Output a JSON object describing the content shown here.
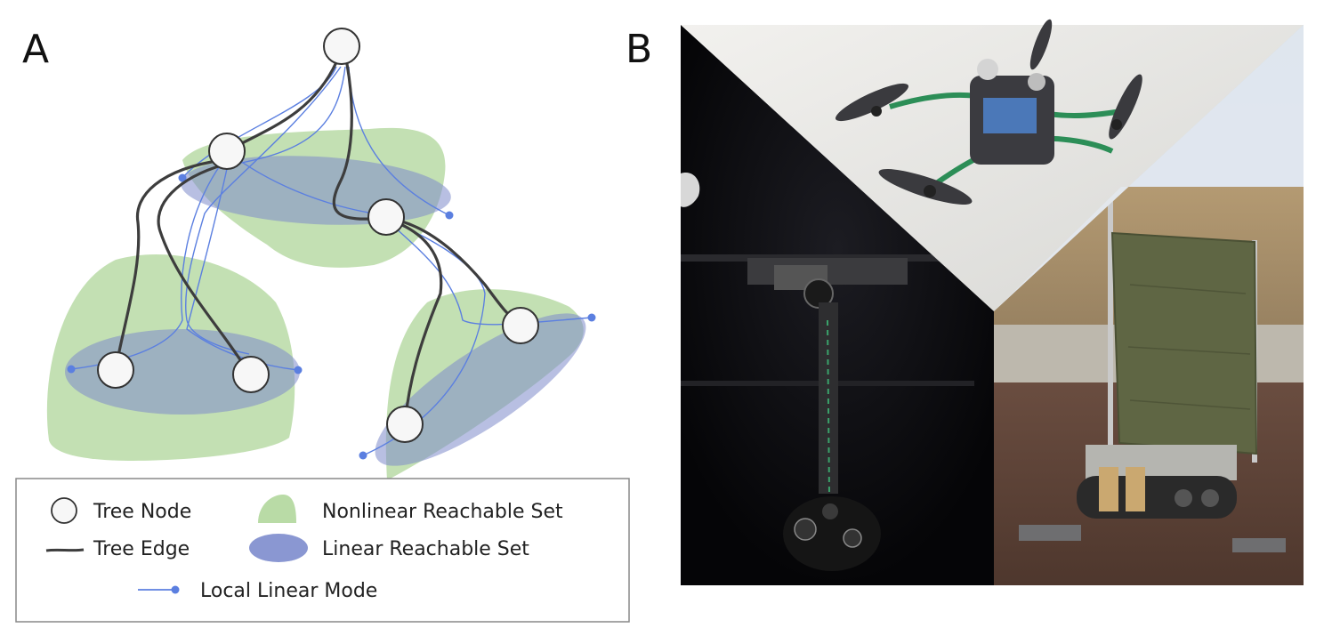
{
  "panels": {
    "a_label": "A",
    "b_label": "B"
  },
  "legend": {
    "tree_node": "Tree Node",
    "tree_edge": "Tree Edge",
    "local_linear_mode": "Local Linear Mode",
    "nonlinear_reachable_set": "Nonlinear Reachable Set",
    "linear_reachable_set": "Linear Reachable Set"
  },
  "colors": {
    "nonlinear_set": "#b9dba6",
    "linear_set": "#8a97d2",
    "tree_edge": "#3d3d3d",
    "local_mode": "#5b7fe0",
    "node_fill": "#f7f7f7"
  },
  "photos": {
    "top": "quadrotor-drone-photo",
    "left": "space-robot-testbed-photo",
    "right": "tracked-rover-with-sail-photo"
  }
}
